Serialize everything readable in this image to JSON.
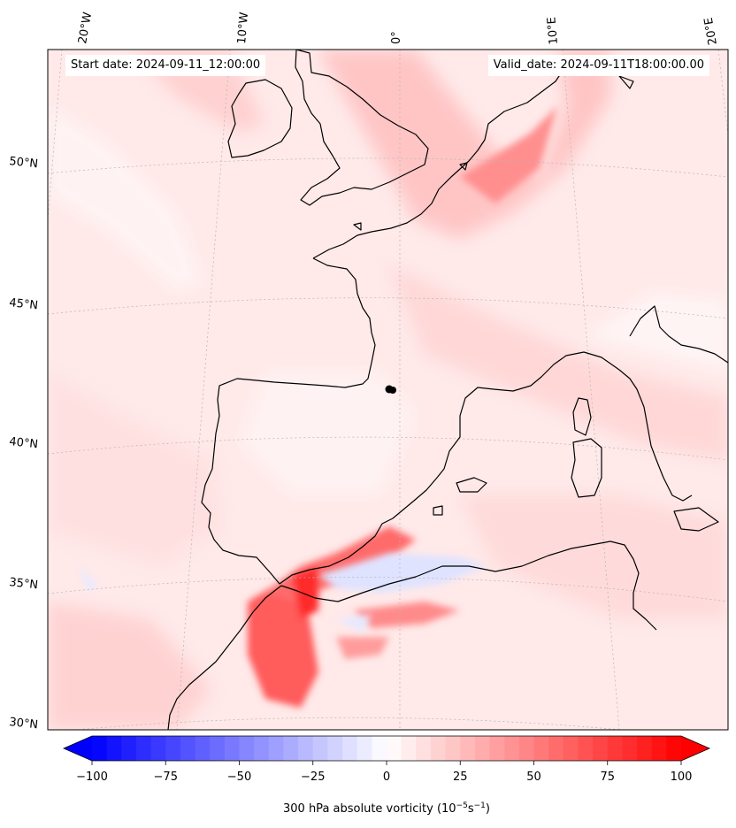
{
  "header": {
    "start_date": "Start date: 2024-09-11_12:00:00",
    "valid_date": "Valid_date: 2024-09-11T18:00:00.00"
  },
  "map": {
    "lon_labels": [
      "20°W",
      "10°W",
      "0°",
      "10°E",
      "20°E"
    ],
    "lat_labels": [
      "50°N",
      "45°N",
      "40°N",
      "35°N",
      "30°N"
    ],
    "marker": "black-dot"
  },
  "colorbar": {
    "ticks": [
      "−100",
      "−75",
      "−50",
      "−25",
      "0",
      "25",
      "50",
      "75",
      "100"
    ],
    "label": "300 hPa absolute vorticity (10",
    "label_sup1": "−5",
    "label_mid": "s",
    "label_sup2": "−1",
    "label_end": ")",
    "colors": {
      "min": "#0000ff",
      "mid": "#ffffff",
      "max": "#ff0000"
    }
  }
}
